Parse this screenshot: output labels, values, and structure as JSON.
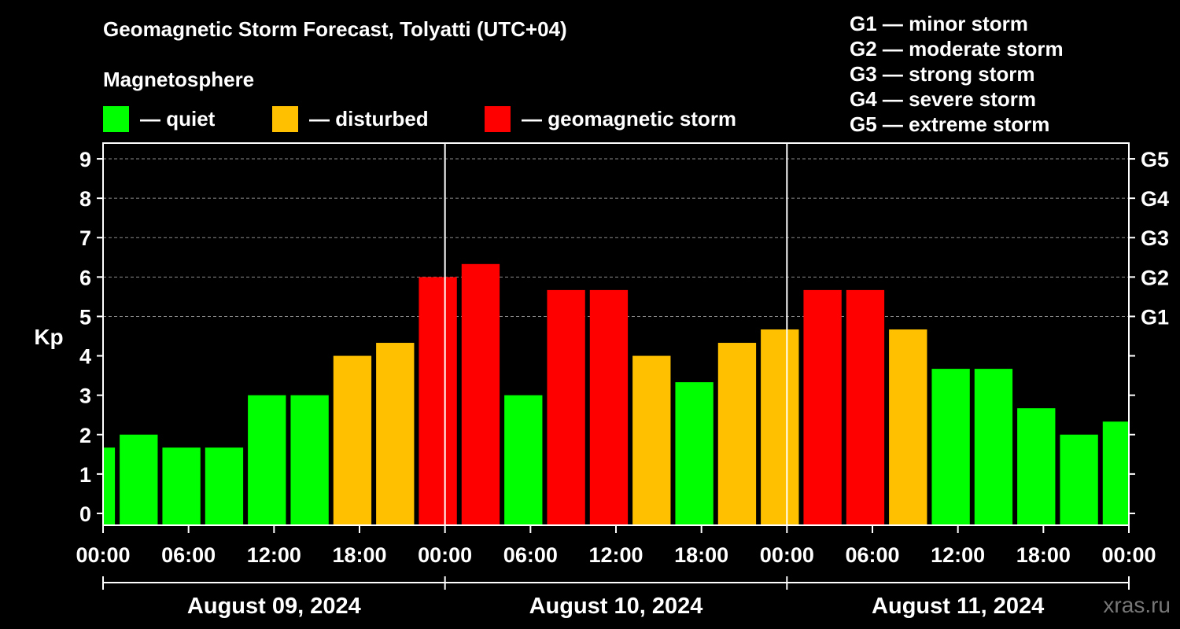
{
  "title": "Geomagnetic Storm Forecast, Tolyatti (UTC+04)",
  "magnetosphere": {
    "title": "Magnetosphere",
    "legend": [
      {
        "label": "— quiet",
        "color": "#00ff00"
      },
      {
        "label": "— disturbed",
        "color": "#ffc000"
      },
      {
        "label": "— geomagnetic storm",
        "color": "#ff0000"
      }
    ]
  },
  "g_scale": [
    {
      "label": "G1 — minor storm"
    },
    {
      "label": "G2 — moderate storm"
    },
    {
      "label": "G3 — strong storm"
    },
    {
      "label": "G4 — severe storm"
    },
    {
      "label": "G5 — extreme storm"
    }
  ],
  "watermark": "xras.ru",
  "chart_data": {
    "type": "bar",
    "title": "Geomagnetic Storm Forecast, Tolyatti (UTC+04)",
    "ylabel": "Kp",
    "ylim": [
      -0.3,
      9.4
    ],
    "yticks": [
      0,
      1,
      2,
      3,
      4,
      5,
      6,
      7,
      8,
      9
    ],
    "right_ticks": [
      {
        "value": 5,
        "label": "G1"
      },
      {
        "value": 6,
        "label": "G2"
      },
      {
        "value": 7,
        "label": "G3"
      },
      {
        "value": 8,
        "label": "G4"
      },
      {
        "value": 9,
        "label": "G5"
      }
    ],
    "x_range_hours": [
      0,
      72
    ],
    "xtick_labels": [
      "00:00",
      "06:00",
      "12:00",
      "18:00",
      "00:00",
      "06:00",
      "12:00",
      "18:00",
      "00:00",
      "06:00",
      "12:00",
      "18:00",
      "00:00"
    ],
    "day_labels": [
      "August 09, 2024",
      "August 10, 2024",
      "August 11, 2024"
    ],
    "day_separators_hours": [
      24,
      48
    ],
    "grid": "horizontal dashed at Kp 5-9",
    "bar_start_hours": [
      -2,
      1,
      4,
      7,
      10,
      13,
      16,
      19,
      22,
      25,
      28,
      31,
      34,
      37,
      40,
      43,
      46,
      49,
      52,
      55,
      58,
      61,
      64,
      67,
      70
    ],
    "values": [
      1.67,
      2.0,
      1.67,
      1.67,
      3.0,
      3.0,
      4.0,
      4.33,
      6.0,
      6.33,
      3.0,
      5.67,
      5.67,
      4.0,
      3.33,
      4.33,
      4.67,
      5.67,
      5.67,
      4.67,
      3.67,
      3.67,
      2.67,
      2.0,
      2.33
    ],
    "levels": [
      "quiet",
      "quiet",
      "quiet",
      "quiet",
      "quiet",
      "quiet",
      "disturbed",
      "disturbed",
      "storm",
      "storm",
      "quiet",
      "storm",
      "storm",
      "disturbed",
      "quiet",
      "disturbed",
      "disturbed",
      "storm",
      "storm",
      "disturbed",
      "quiet",
      "quiet",
      "quiet",
      "quiet",
      "quiet"
    ],
    "level_colors": {
      "quiet": "#00ff00",
      "disturbed": "#ffc000",
      "storm": "#ff0000"
    }
  }
}
